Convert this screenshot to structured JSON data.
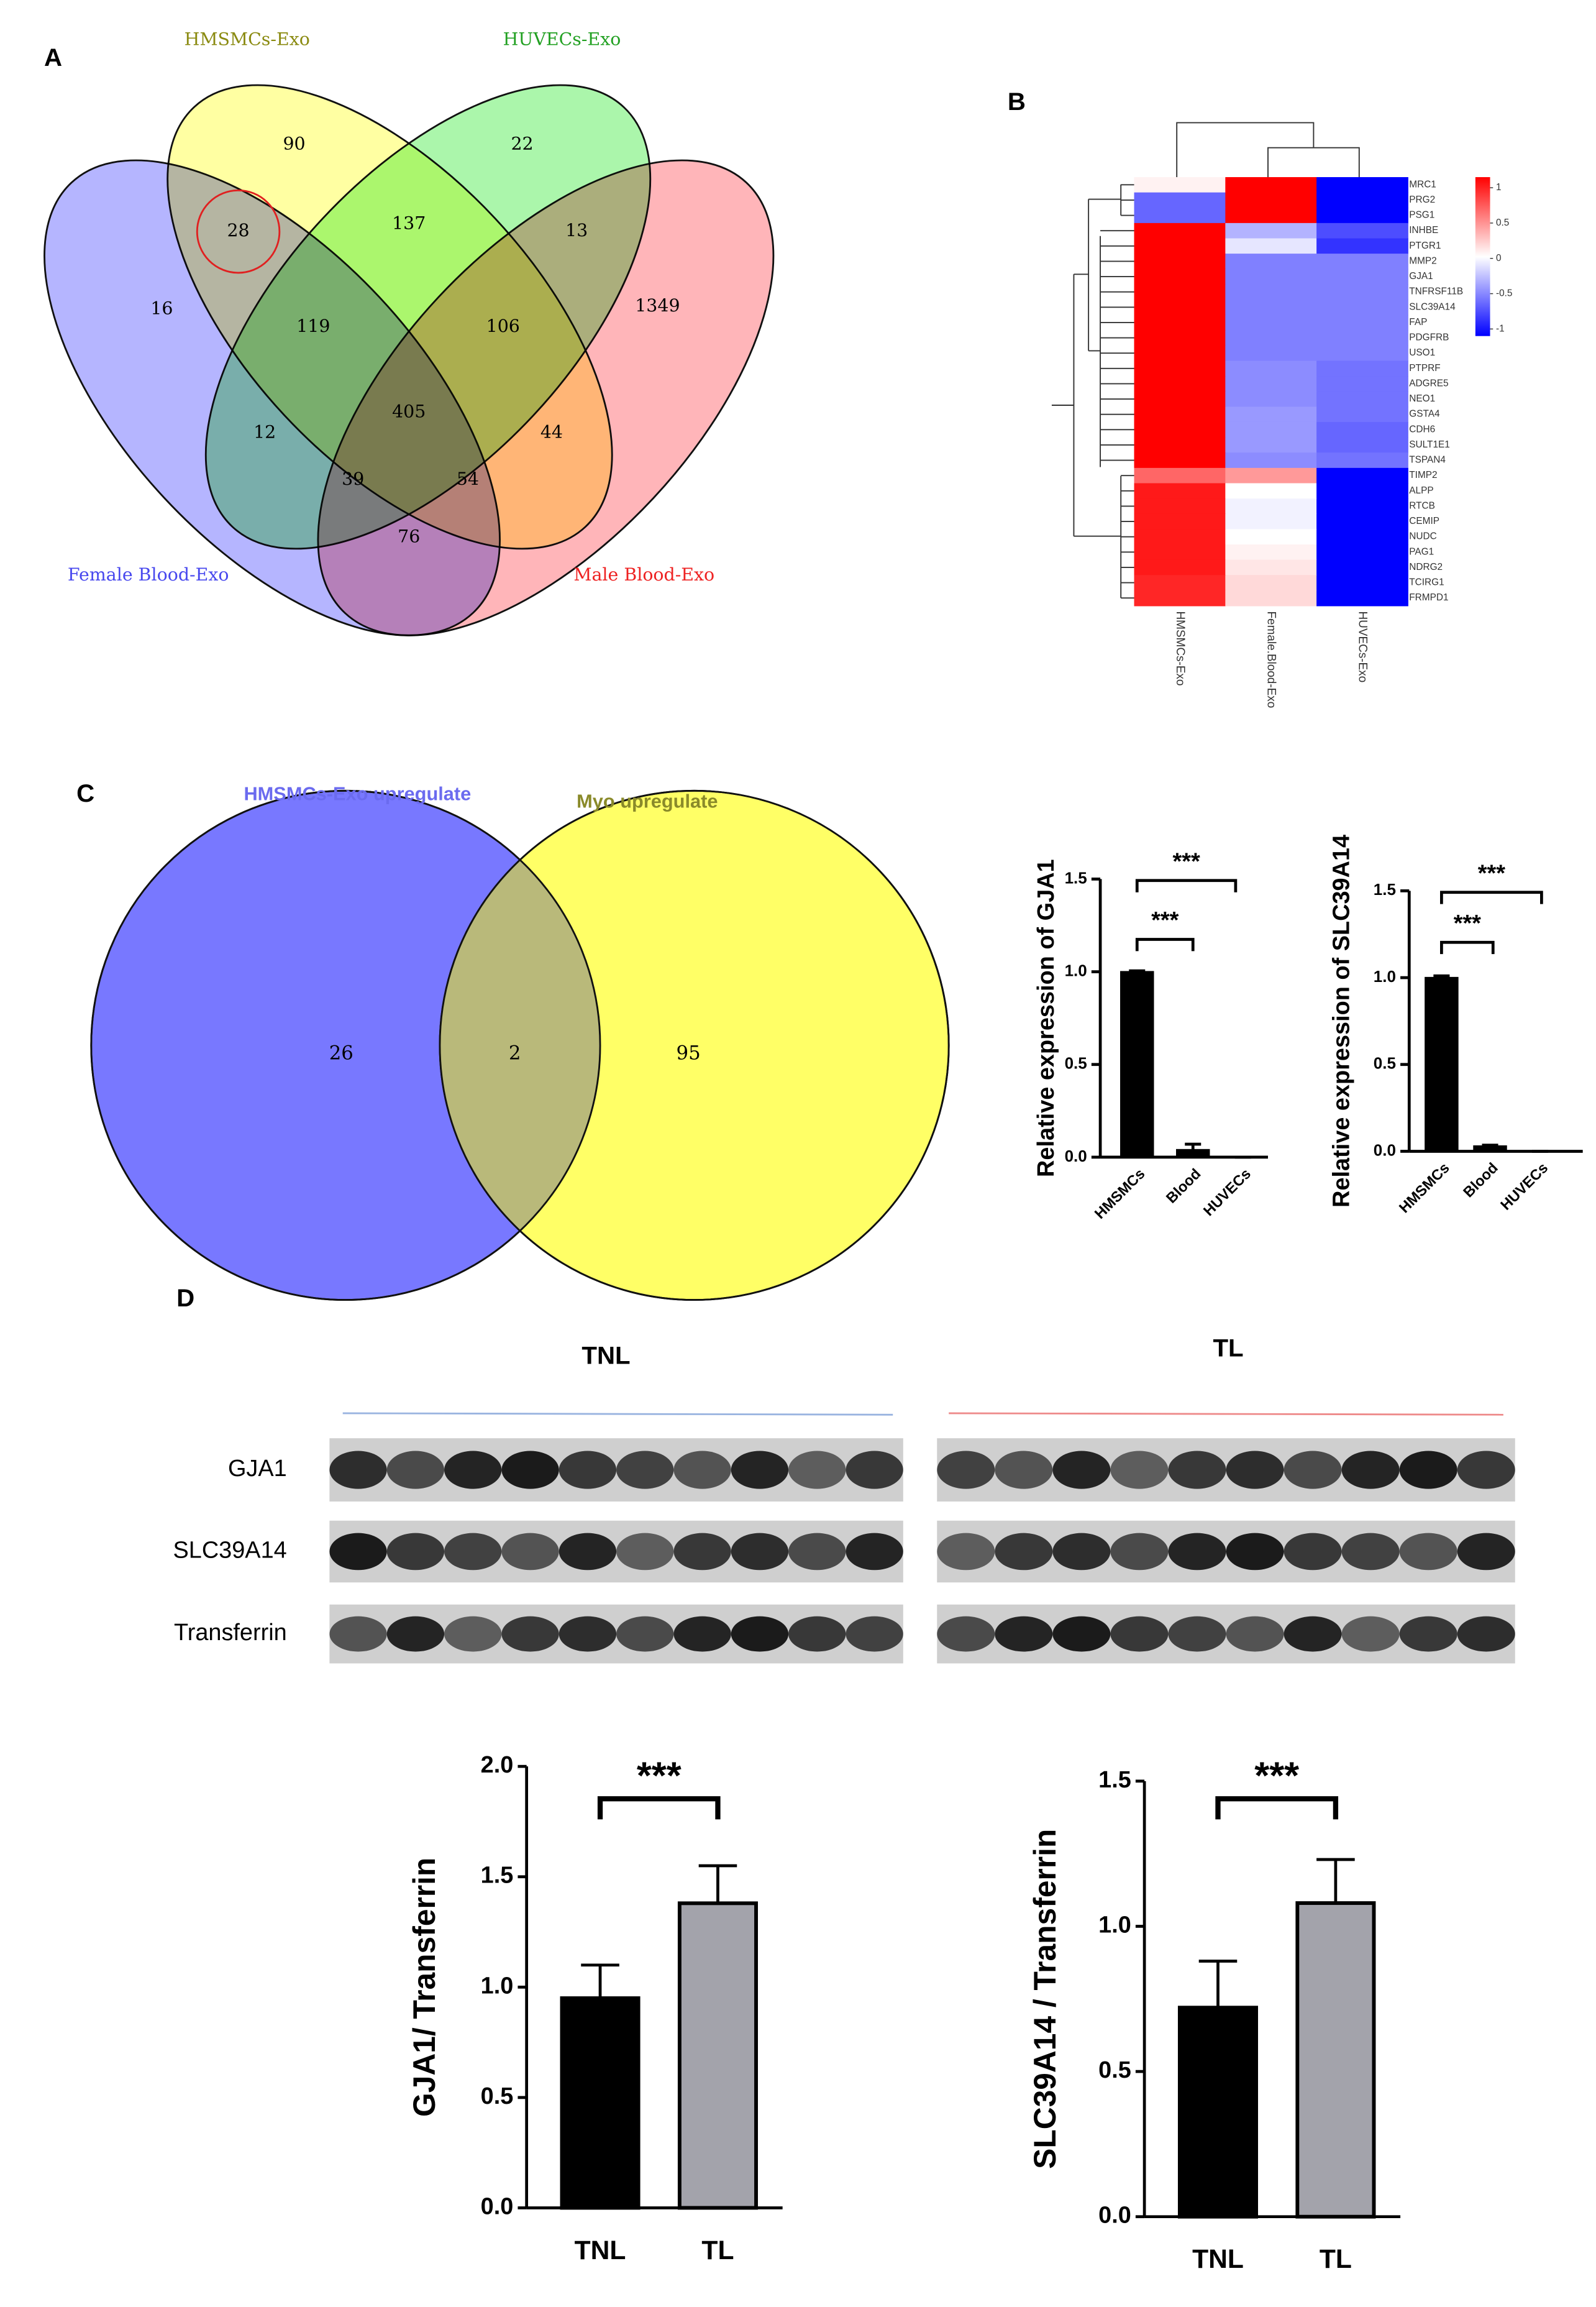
{
  "panels": [
    "A",
    "B",
    "C",
    "D"
  ],
  "venn4": {
    "sets": [
      {
        "name": "HMSMCs-Exo",
        "color": "#ffff55",
        "label_color": "#8a8a10"
      },
      {
        "name": "HUVECs-Exo",
        "color": "#66ee66",
        "label_color": "#22a022"
      },
      {
        "name": "Female Blood-Exo",
        "color": "#7878ff",
        "label_color": "#4848ee"
      },
      {
        "name": "Male Blood-Exo",
        "color": "#ff7880",
        "label_color": "#ee2222"
      }
    ],
    "regions": [
      90,
      22,
      16,
      1349,
      28,
      137,
      13,
      119,
      106,
      12,
      405,
      44,
      39,
      54,
      76
    ]
  },
  "heatmap": {
    "columns": [
      "HMSMCs-Exo",
      "Female.Blood-Exo",
      "HUVECs-Exo"
    ],
    "rows": [
      "MRC1",
      "PRG2",
      "PSG1",
      "INHBE",
      "PTGR1",
      "MMP2",
      "GJA1",
      "TNFRSF11B",
      "SLC39A14",
      "FAP",
      "PDGFRB",
      "USO1",
      "PTPRF",
      "ADGRE5",
      "NEO1",
      "GSTA4",
      "CDH6",
      "SULT1E1",
      "TSPAN4",
      "TIMP2",
      "ALPP",
      "RTCB",
      "CEMIP",
      "NUDC",
      "PAG1",
      "NDRG2",
      "TCIRG1",
      "FRMPD1"
    ],
    "values": [
      [
        0.05,
        1,
        -1
      ],
      [
        -0.6,
        1,
        -1
      ],
      [
        -0.6,
        1,
        -1
      ],
      [
        1,
        -0.3,
        -0.7
      ],
      [
        1,
        -0.1,
        -0.8
      ],
      [
        1,
        -0.5,
        -0.5
      ],
      [
        1,
        -0.5,
        -0.5
      ],
      [
        1,
        -0.5,
        -0.5
      ],
      [
        1,
        -0.5,
        -0.5
      ],
      [
        1,
        -0.5,
        -0.5
      ],
      [
        1,
        -0.5,
        -0.5
      ],
      [
        1,
        -0.5,
        -0.5
      ],
      [
        1,
        -0.45,
        -0.55
      ],
      [
        1,
        -0.45,
        -0.55
      ],
      [
        1,
        -0.45,
        -0.55
      ],
      [
        1,
        -0.4,
        -0.55
      ],
      [
        1,
        -0.4,
        -0.6
      ],
      [
        1,
        -0.4,
        -0.6
      ],
      [
        1,
        -0.45,
        -0.55
      ],
      [
        0.6,
        0.4,
        -1
      ],
      [
        0.9,
        0,
        -1
      ],
      [
        0.9,
        -0.05,
        -1
      ],
      [
        0.9,
        -0.05,
        -1
      ],
      [
        0.9,
        0,
        -1
      ],
      [
        0.9,
        0.05,
        -1
      ],
      [
        0.9,
        0.1,
        -1
      ],
      [
        0.85,
        0.15,
        -1
      ],
      [
        0.85,
        0.15,
        -1
      ]
    ],
    "colorbar": {
      "lim": [
        -1.1,
        1.15
      ],
      "ticks": [
        1,
        0.5,
        0,
        -0.5,
        -1
      ]
    }
  },
  "venn2": {
    "sets": [
      {
        "name": "HMSMCs-Exo upregulate",
        "color": "#7878ff",
        "label_color": "#6b6bef"
      },
      {
        "name": "Myo upregulate",
        "color": "#ffff66",
        "label_color": "#8a8a2a"
      }
    ],
    "overlap_color": "#b9b97a",
    "regions": [
      26,
      2,
      95
    ]
  },
  "chart_data": [
    {
      "type": "bar",
      "y_label": "Relative expression of GJA1",
      "categories": [
        "HMSMCs",
        "Blood",
        "HUVECs"
      ],
      "values": [
        1,
        0.04,
        0
      ],
      "errors": [
        0.005,
        0.03,
        0
      ],
      "colors": [
        "#000000",
        "#000000",
        "#000000"
      ],
      "ylim": [
        0,
        1.5
      ],
      "yticks": [
        {
          "value": 0,
          "label": "0.0"
        },
        0.5,
        {
          "value": 1,
          "label": "1.0"
        },
        1.5
      ],
      "significance": [
        "***",
        "***"
      ]
    },
    {
      "type": "bar",
      "y_label": "Relative expression of SLC39A14",
      "categories": [
        "HMSMCs",
        "Blood",
        "HUVECs"
      ],
      "values": [
        1,
        0.03,
        0
      ],
      "errors": [
        0.01,
        0.005,
        0
      ],
      "colors": [
        "#000000",
        "#000000",
        "#000000"
      ],
      "ylim": [
        0,
        1.5
      ],
      "yticks": [
        {
          "value": 0,
          "label": "0.0"
        },
        0.5,
        {
          "value": 1,
          "label": "1.0"
        },
        1.5
      ],
      "significance": [
        "***",
        "***"
      ]
    },
    {
      "type": "bar",
      "y_label": "GJA1/ Transferrin",
      "categories": [
        "TNL",
        "TL"
      ],
      "values": [
        0.95,
        1.38
      ],
      "errors": [
        0.15,
        0.17
      ],
      "colors": [
        "#000000",
        "#a3a3ab"
      ],
      "ylim": [
        0,
        2
      ],
      "yticks": [
        {
          "value": 0,
          "label": "0.0"
        },
        0.5,
        {
          "value": 1,
          "label": "1.0"
        },
        1.5,
        {
          "value": 2,
          "label": "2.0"
        }
      ],
      "significance": [
        "***"
      ]
    },
    {
      "type": "bar",
      "y_label": "SLC39A14 / Transferrin",
      "categories": [
        "TNL",
        "TL"
      ],
      "values": [
        0.72,
        1.08
      ],
      "errors": [
        0.16,
        0.15
      ],
      "colors": [
        "#000000",
        "#a3a3ab"
      ],
      "ylim": [
        0,
        1.5
      ],
      "yticks": [
        {
          "value": 0,
          "label": "0.0"
        },
        0.5,
        {
          "value": 1,
          "label": "1.0"
        },
        1.5
      ],
      "significance": [
        "***"
      ]
    }
  ],
  "blot": {
    "groups": [
      "TNL",
      "TL"
    ],
    "group_colors": [
      "#9ab4e0",
      "#ee8a8a"
    ],
    "rows": [
      "GJA1",
      "SLC39A14",
      "Transferrin"
    ]
  }
}
